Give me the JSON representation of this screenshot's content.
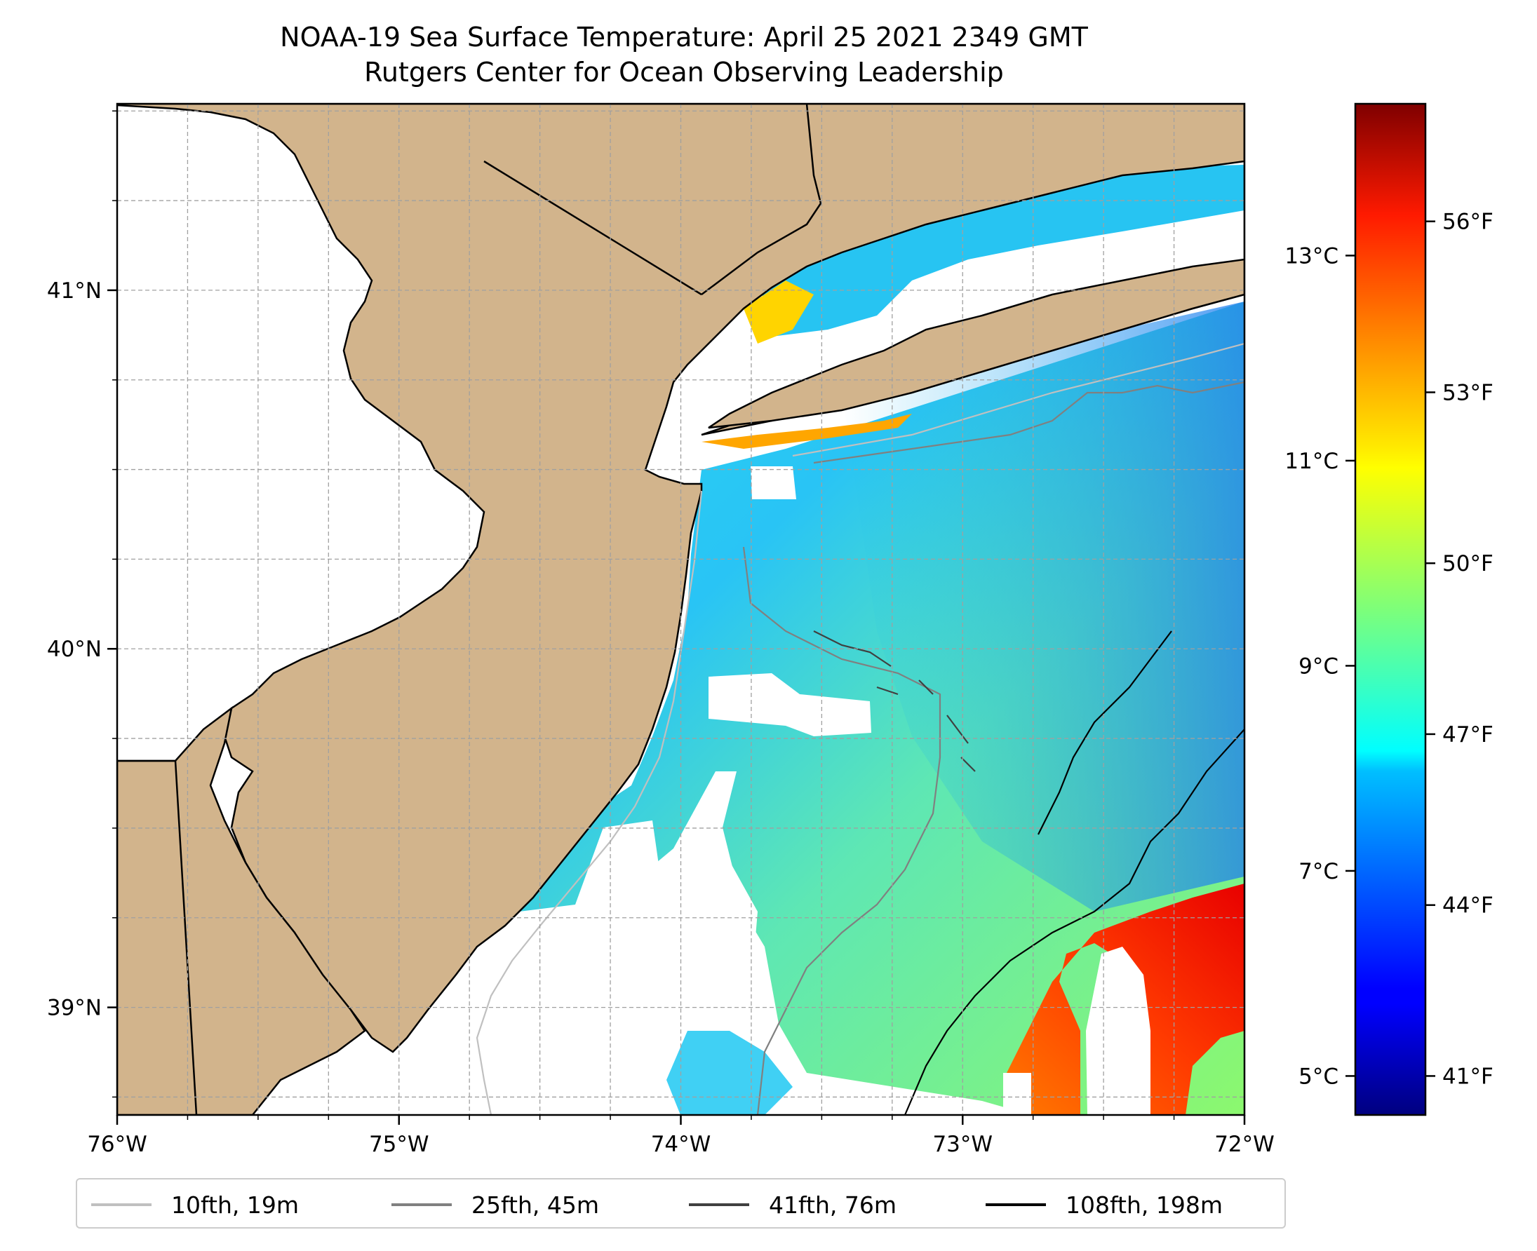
{
  "title": {
    "line1": "NOAA-19 Sea Surface Temperature: April 25 2021 2349 GMT",
    "line2": "Rutgers Center for Ocean Observing Leadership"
  },
  "map": {
    "lon_range": [
      -76,
      -72
    ],
    "lat_range": [
      38.7,
      41.52
    ],
    "land_color": "#d2b48c",
    "ocean_nodata_color": "#ffffff",
    "x_ticks": [
      "76°W",
      "75°W",
      "74°W",
      "73°W",
      "72°W"
    ],
    "y_ticks": [
      "39°N",
      "40°N",
      "41°N"
    ],
    "gridlines": true
  },
  "colorbar": {
    "colormap": "jet",
    "celsius_ticks": [
      "5°C",
      "7°C",
      "9°C",
      "11°C",
      "13°C"
    ],
    "fahrenheit_ticks": [
      "41°F",
      "44°F",
      "47°F",
      "50°F",
      "53°F",
      "56°F"
    ]
  },
  "legend": {
    "items": [
      {
        "label": "10fth, 19m",
        "color": "#c0c0c0"
      },
      {
        "label": "25fth, 45m",
        "color": "#808080"
      },
      {
        "label": "41fth, 76m",
        "color": "#404040"
      },
      {
        "label": "108fth, 198m",
        "color": "#000000"
      }
    ]
  }
}
